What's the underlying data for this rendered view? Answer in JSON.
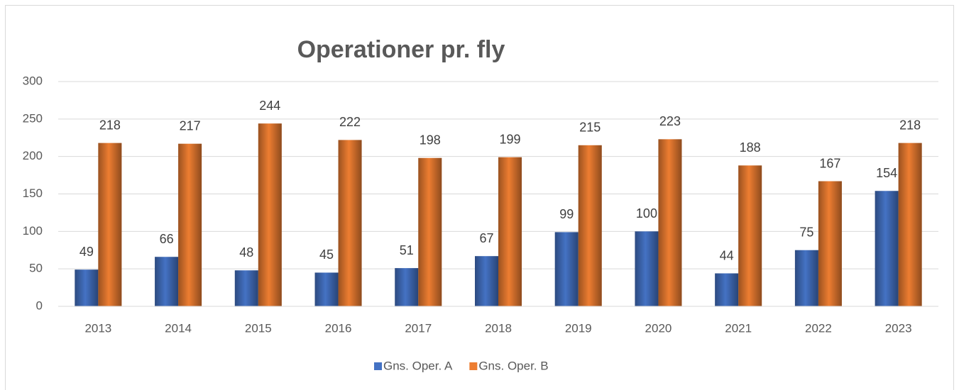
{
  "chart_data": {
    "type": "bar",
    "title": "Operationer pr. fly",
    "categories": [
      "2013",
      "2014",
      "2015",
      "2016",
      "2017",
      "2018",
      "2019",
      "2020",
      "2021",
      "2022",
      "2023"
    ],
    "series": [
      {
        "name": "Gns. Oper. A",
        "color": "#4472c4",
        "values": [
          49,
          66,
          48,
          45,
          51,
          67,
          99,
          100,
          44,
          75,
          154
        ]
      },
      {
        "name": "Gns. Oper. B",
        "color": "#ed7d31",
        "values": [
          218,
          217,
          244,
          222,
          198,
          199,
          215,
          223,
          188,
          167,
          218
        ]
      }
    ],
    "ylim": [
      0,
      300
    ],
    "yticks": [
      0,
      50,
      100,
      150,
      200,
      250,
      300
    ],
    "grid": true,
    "legend": "bottom"
  }
}
